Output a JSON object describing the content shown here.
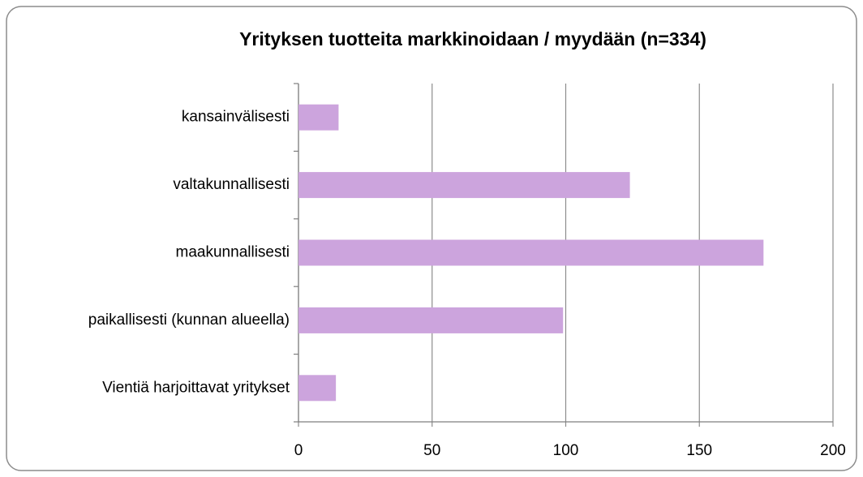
{
  "chart_data": {
    "type": "barh",
    "title": "Yrityksen tuotteita markkinoidaan / myydään (n=334)",
    "categories": [
      "kansainvälisesti",
      "valtakunnallisesti",
      "maakunnallisesti",
      "paikallisesti (kunnan alueella)",
      "Vientiä harjoittavat yritykset"
    ],
    "values": [
      15,
      124,
      174,
      99,
      14
    ],
    "color": "#cca4dd",
    "xlim": [
      0,
      200
    ],
    "xticks": [
      0,
      50,
      100,
      150,
      200
    ],
    "grid": true
  }
}
